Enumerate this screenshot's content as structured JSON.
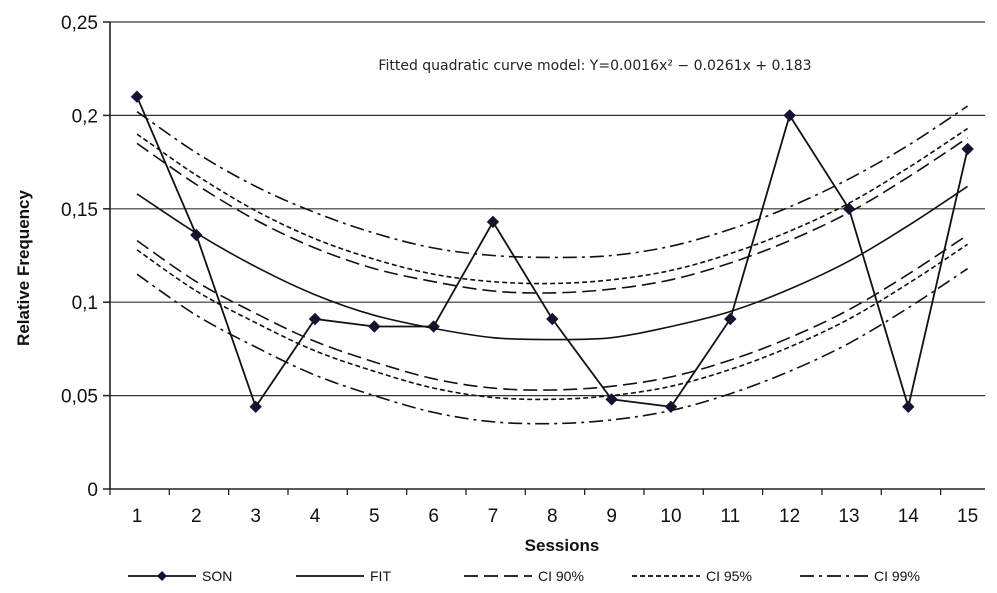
{
  "chart_data": {
    "type": "line",
    "title": "",
    "xlabel": "Sessions",
    "ylabel": "Relative Frequency",
    "annotation": "Fitted quadratic curve model: Y=0.0016x² − 0.0261x + 0.183",
    "x": [
      1,
      2,
      3,
      4,
      5,
      6,
      7,
      8,
      9,
      10,
      11,
      12,
      13,
      14,
      15
    ],
    "x_tick_labels": [
      "1",
      "2",
      "3",
      "4",
      "5",
      "6",
      "7",
      "8",
      "9",
      "10",
      "11",
      "12",
      "13",
      "14",
      "15"
    ],
    "ylim": [
      0,
      0.25
    ],
    "y_ticks": [
      0,
      0.05,
      0.1,
      0.15,
      0.2,
      0.25
    ],
    "y_tick_labels": [
      "0",
      "0,05",
      "0,1",
      "0,15",
      "0,2",
      "0,25"
    ],
    "grid": "horizontal",
    "legend_position": "bottom",
    "series": [
      {
        "name": "SON",
        "style": "solid-marker",
        "values": [
          0.21,
          0.136,
          0.044,
          0.091,
          0.087,
          0.087,
          0.143,
          0.091,
          0.048,
          0.044,
          0.091,
          0.2,
          0.15,
          0.044,
          0.182
        ]
      },
      {
        "name": "FIT",
        "style": "solid",
        "values": [
          0.158,
          0.137,
          0.119,
          0.104,
          0.093,
          0.086,
          0.081,
          0.08,
          0.081,
          0.087,
          0.095,
          0.107,
          0.122,
          0.141,
          0.162
        ]
      },
      {
        "name": "CI 90%",
        "style": "long-dash",
        "values": [
          0.185,
          0.163,
          0.144,
          0.129,
          0.118,
          0.111,
          0.106,
          0.105,
          0.107,
          0.112,
          0.121,
          0.133,
          0.148,
          0.167,
          0.188
        ]
      },
      {
        "name": "",
        "style": "long-dash",
        "values": [
          0.133,
          0.111,
          0.094,
          0.079,
          0.068,
          0.059,
          0.054,
          0.053,
          0.055,
          0.06,
          0.069,
          0.081,
          0.096,
          0.115,
          0.136
        ]
      },
      {
        "name": "CI 95%",
        "style": "short-dash",
        "values": [
          0.19,
          0.168,
          0.149,
          0.134,
          0.123,
          0.115,
          0.111,
          0.11,
          0.112,
          0.117,
          0.126,
          0.138,
          0.153,
          0.172,
          0.193
        ]
      },
      {
        "name": "",
        "style": "short-dash",
        "values": [
          0.128,
          0.106,
          0.089,
          0.074,
          0.063,
          0.054,
          0.049,
          0.048,
          0.05,
          0.055,
          0.064,
          0.076,
          0.091,
          0.11,
          0.131
        ]
      },
      {
        "name": "CI 99%",
        "style": "dash-dot",
        "values": [
          0.202,
          0.18,
          0.162,
          0.148,
          0.137,
          0.129,
          0.125,
          0.124,
          0.125,
          0.13,
          0.139,
          0.151,
          0.166,
          0.184,
          0.205
        ]
      },
      {
        "name": "",
        "style": "dash-dot",
        "values": [
          0.115,
          0.093,
          0.076,
          0.061,
          0.05,
          0.041,
          0.036,
          0.035,
          0.037,
          0.042,
          0.051,
          0.063,
          0.078,
          0.097,
          0.118
        ]
      }
    ]
  }
}
